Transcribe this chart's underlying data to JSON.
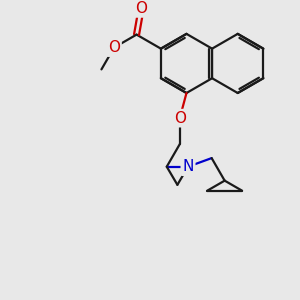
{
  "bg_color": "#e8e8e8",
  "bond_color": "#1a1a1a",
  "bond_width": 1.6,
  "atom_O_color": "#cc0000",
  "atom_N_color": "#0000cc",
  "figsize": [
    3.0,
    3.0
  ],
  "dpi": 100,
  "xlim": [
    -1.0,
    9.0
  ],
  "ylim": [
    -1.5,
    8.5
  ]
}
